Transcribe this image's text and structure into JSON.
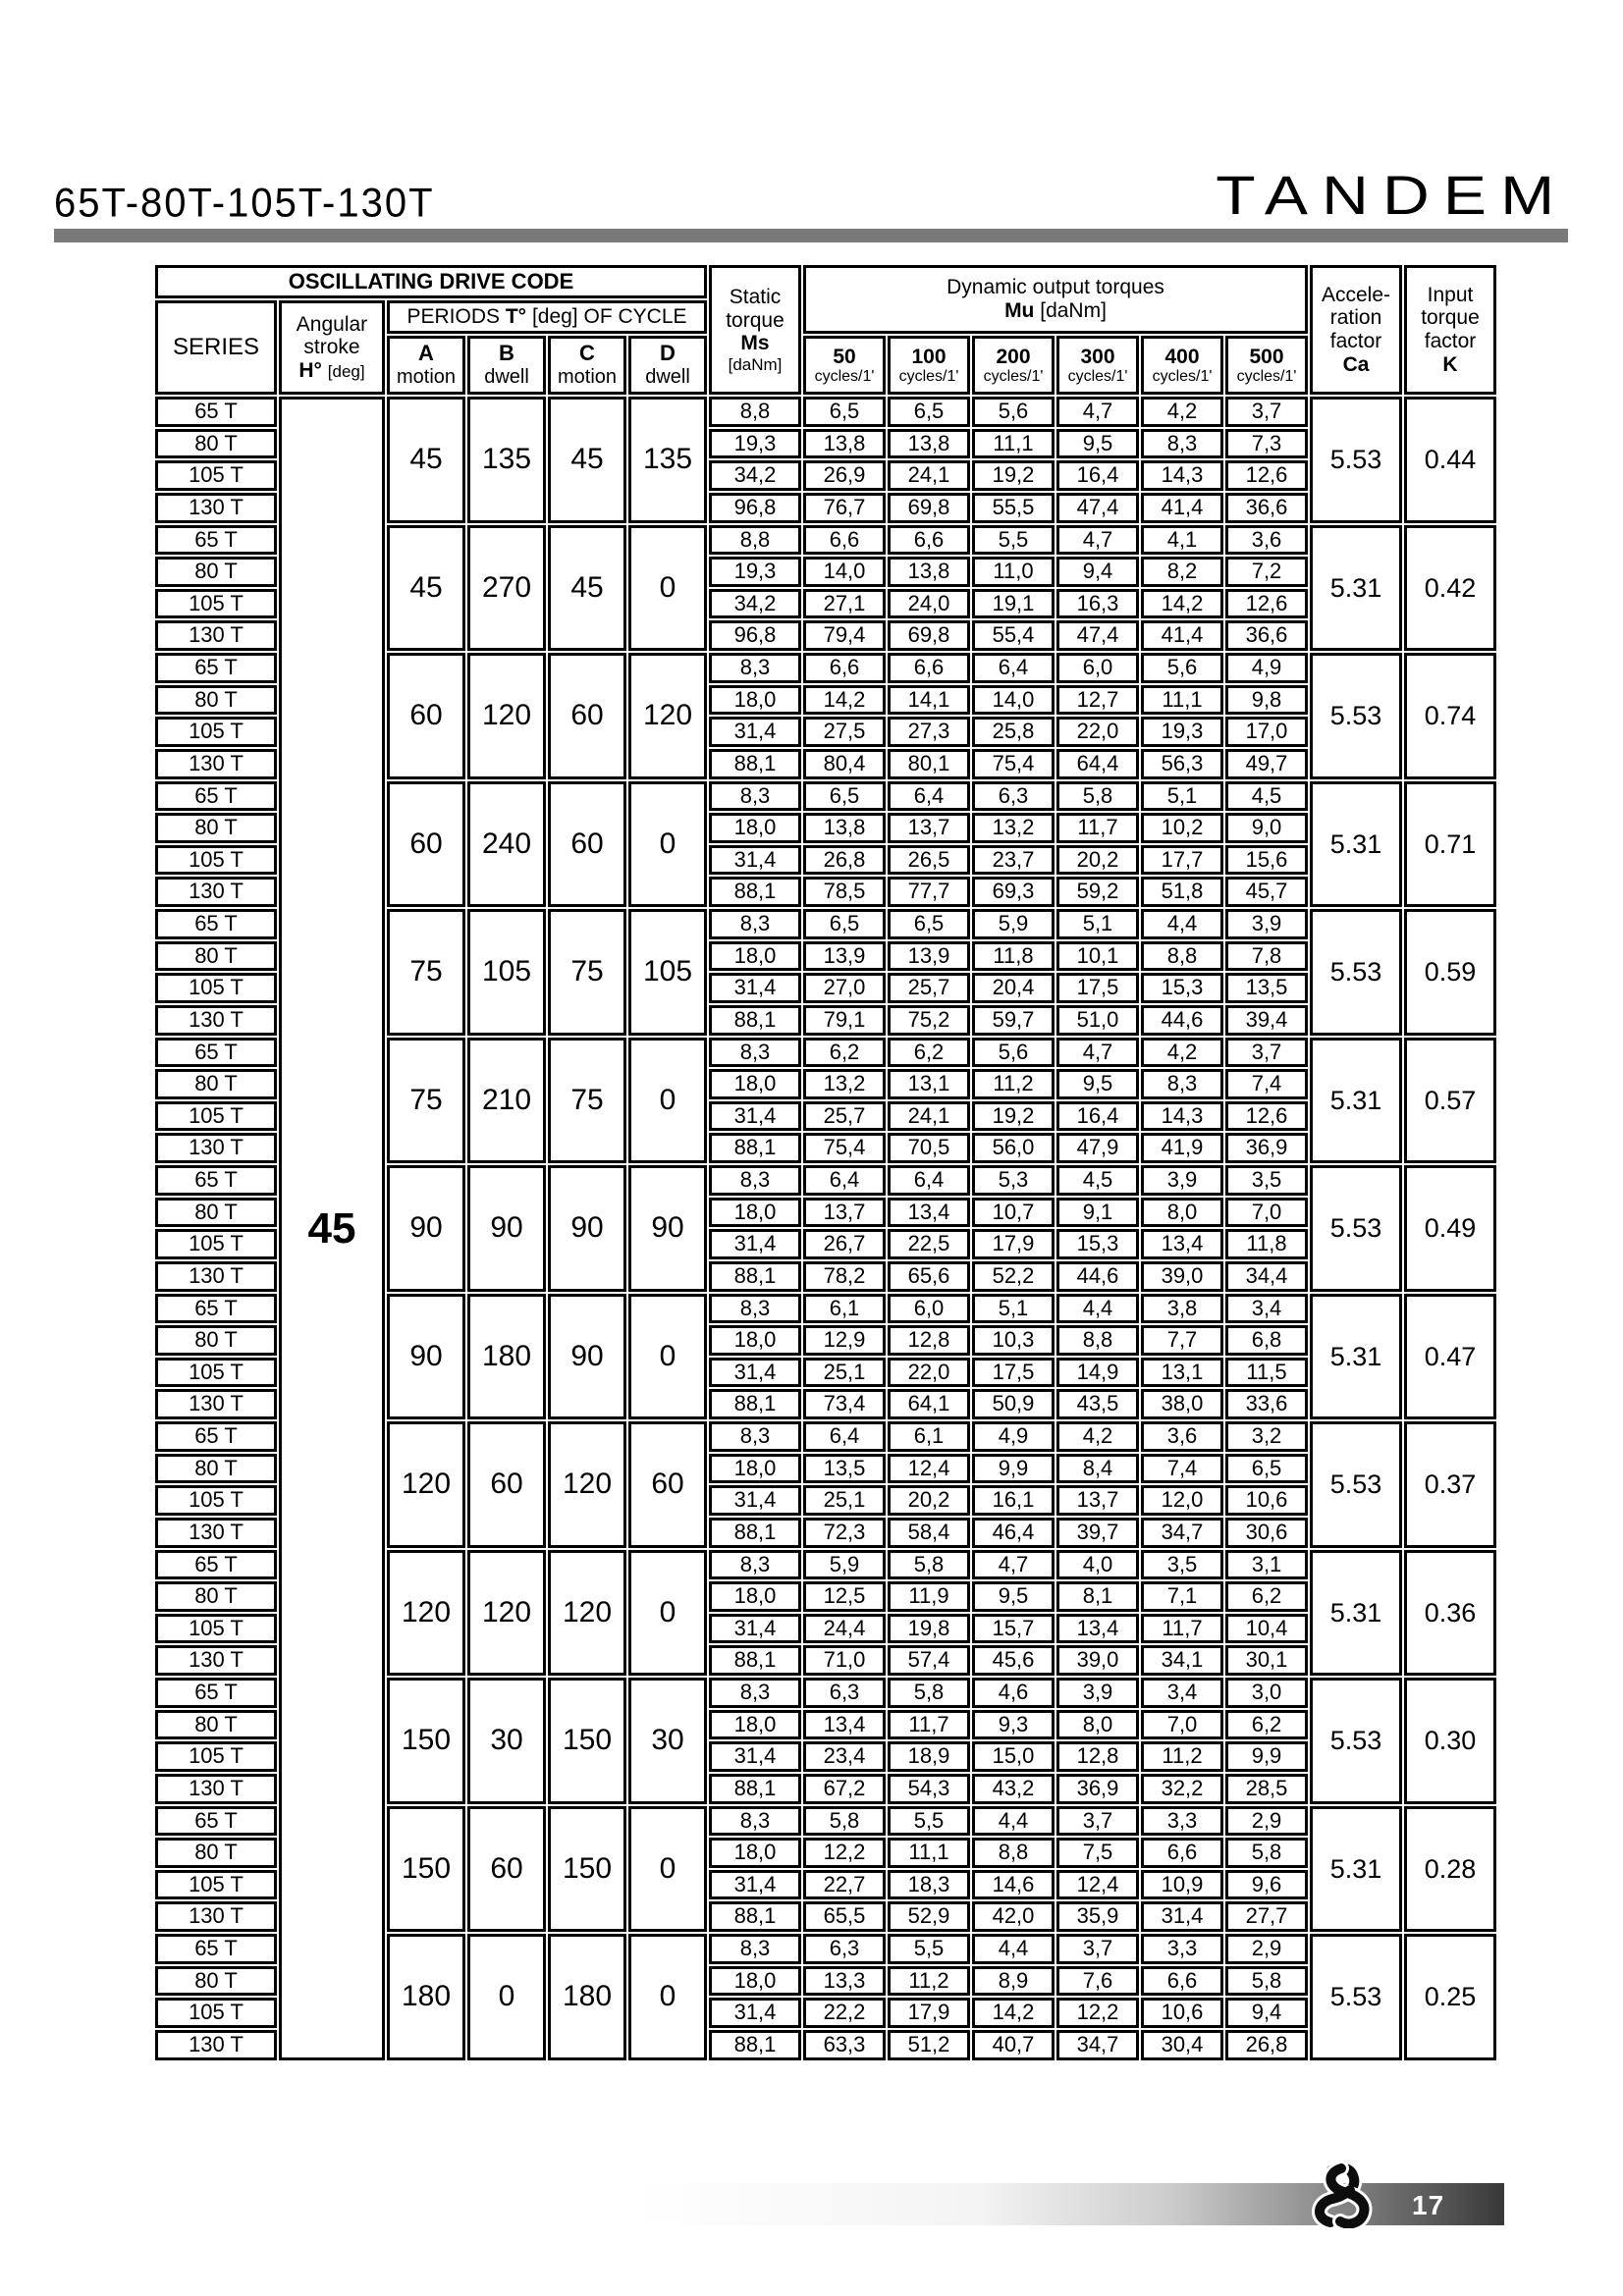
{
  "page": {
    "title_left": "65T-80T-105T-130T",
    "title_right": "TANDEM",
    "page_number": "17"
  },
  "table": {
    "header": {
      "drive_code": "OSCILLATING DRIVE CODE",
      "series": "SERIES",
      "angular_lines": [
        "Angular",
        "stroke"
      ],
      "angular_sym": "H°",
      "angular_unit": "[deg]",
      "periods_pre": "PERIODS",
      "periods_sym": "T°",
      "periods_post": "[deg] OF CYCLE",
      "period_cols": [
        {
          "letter": "A",
          "sub": "motion"
        },
        {
          "letter": "B",
          "sub": "dwell"
        },
        {
          "letter": "C",
          "sub": "motion"
        },
        {
          "letter": "D",
          "sub": "dwell"
        }
      ],
      "static_lines": [
        "Static",
        "torque"
      ],
      "static_sym": "Ms",
      "static_unit": "[daNm]",
      "dynamic_title": "Dynamic output torques",
      "dynamic_sym": "Mu",
      "dynamic_unit": "[daNm]",
      "cycle_values": [
        "50",
        "100",
        "200",
        "300",
        "400",
        "500"
      ],
      "cycles_label": "cycles/1'",
      "accel_lines": [
        "Accele-",
        "ration",
        "factor"
      ],
      "accel_sym": "Ca",
      "input_lines": [
        "Input",
        "torque",
        "factor"
      ],
      "input_sym": "K"
    },
    "angular_stroke_value": "45",
    "series_labels": [
      "65 T",
      "80 T",
      "105 T",
      "130 T"
    ],
    "groups": [
      {
        "A": "45",
        "B": "135",
        "C": "45",
        "D": "135",
        "Ca": "5.53",
        "K": "0.44",
        "rows": [
          [
            "8,8",
            "6,5",
            "6,5",
            "5,6",
            "4,7",
            "4,2",
            "3,7"
          ],
          [
            "19,3",
            "13,8",
            "13,8",
            "11,1",
            "9,5",
            "8,3",
            "7,3"
          ],
          [
            "34,2",
            "26,9",
            "24,1",
            "19,2",
            "16,4",
            "14,3",
            "12,6"
          ],
          [
            "96,8",
            "76,7",
            "69,8",
            "55,5",
            "47,4",
            "41,4",
            "36,6"
          ]
        ]
      },
      {
        "A": "45",
        "B": "270",
        "C": "45",
        "D": "0",
        "Ca": "5.31",
        "K": "0.42",
        "rows": [
          [
            "8,8",
            "6,6",
            "6,6",
            "5,5",
            "4,7",
            "4,1",
            "3,6"
          ],
          [
            "19,3",
            "14,0",
            "13,8",
            "11,0",
            "9,4",
            "8,2",
            "7,2"
          ],
          [
            "34,2",
            "27,1",
            "24,0",
            "19,1",
            "16,3",
            "14,2",
            "12,6"
          ],
          [
            "96,8",
            "79,4",
            "69,8",
            "55,4",
            "47,4",
            "41,4",
            "36,6"
          ]
        ]
      },
      {
        "A": "60",
        "B": "120",
        "C": "60",
        "D": "120",
        "Ca": "5.53",
        "K": "0.74",
        "rows": [
          [
            "8,3",
            "6,6",
            "6,6",
            "6,4",
            "6,0",
            "5,6",
            "4,9"
          ],
          [
            "18,0",
            "14,2",
            "14,1",
            "14,0",
            "12,7",
            "11,1",
            "9,8"
          ],
          [
            "31,4",
            "27,5",
            "27,3",
            "25,8",
            "22,0",
            "19,3",
            "17,0"
          ],
          [
            "88,1",
            "80,4",
            "80,1",
            "75,4",
            "64,4",
            "56,3",
            "49,7"
          ]
        ]
      },
      {
        "A": "60",
        "B": "240",
        "C": "60",
        "D": "0",
        "Ca": "5.31",
        "K": "0.71",
        "rows": [
          [
            "8,3",
            "6,5",
            "6,4",
            "6,3",
            "5,8",
            "5,1",
            "4,5"
          ],
          [
            "18,0",
            "13,8",
            "13,7",
            "13,2",
            "11,7",
            "10,2",
            "9,0"
          ],
          [
            "31,4",
            "26,8",
            "26,5",
            "23,7",
            "20,2",
            "17,7",
            "15,6"
          ],
          [
            "88,1",
            "78,5",
            "77,7",
            "69,3",
            "59,2",
            "51,8",
            "45,7"
          ]
        ]
      },
      {
        "A": "75",
        "B": "105",
        "C": "75",
        "D": "105",
        "Ca": "5.53",
        "K": "0.59",
        "rows": [
          [
            "8,3",
            "6,5",
            "6,5",
            "5,9",
            "5,1",
            "4,4",
            "3,9"
          ],
          [
            "18,0",
            "13,9",
            "13,9",
            "11,8",
            "10,1",
            "8,8",
            "7,8"
          ],
          [
            "31,4",
            "27,0",
            "25,7",
            "20,4",
            "17,5",
            "15,3",
            "13,5"
          ],
          [
            "88,1",
            "79,1",
            "75,2",
            "59,7",
            "51,0",
            "44,6",
            "39,4"
          ]
        ]
      },
      {
        "A": "75",
        "B": "210",
        "C": "75",
        "D": "0",
        "Ca": "5.31",
        "K": "0.57",
        "rows": [
          [
            "8,3",
            "6,2",
            "6,2",
            "5,6",
            "4,7",
            "4,2",
            "3,7"
          ],
          [
            "18,0",
            "13,2",
            "13,1",
            "11,2",
            "9,5",
            "8,3",
            "7,4"
          ],
          [
            "31,4",
            "25,7",
            "24,1",
            "19,2",
            "16,4",
            "14,3",
            "12,6"
          ],
          [
            "88,1",
            "75,4",
            "70,5",
            "56,0",
            "47,9",
            "41,9",
            "36,9"
          ]
        ]
      },
      {
        "A": "90",
        "B": "90",
        "C": "90",
        "D": "90",
        "Ca": "5.53",
        "K": "0.49",
        "rows": [
          [
            "8,3",
            "6,4",
            "6,4",
            "5,3",
            "4,5",
            "3,9",
            "3,5"
          ],
          [
            "18,0",
            "13,7",
            "13,4",
            "10,7",
            "9,1",
            "8,0",
            "7,0"
          ],
          [
            "31,4",
            "26,7",
            "22,5",
            "17,9",
            "15,3",
            "13,4",
            "11,8"
          ],
          [
            "88,1",
            "78,2",
            "65,6",
            "52,2",
            "44,6",
            "39,0",
            "34,4"
          ]
        ]
      },
      {
        "A": "90",
        "B": "180",
        "C": "90",
        "D": "0",
        "Ca": "5.31",
        "K": "0.47",
        "rows": [
          [
            "8,3",
            "6,1",
            "6,0",
            "5,1",
            "4,4",
            "3,8",
            "3,4"
          ],
          [
            "18,0",
            "12,9",
            "12,8",
            "10,3",
            "8,8",
            "7,7",
            "6,8"
          ],
          [
            "31,4",
            "25,1",
            "22,0",
            "17,5",
            "14,9",
            "13,1",
            "11,5"
          ],
          [
            "88,1",
            "73,4",
            "64,1",
            "50,9",
            "43,5",
            "38,0",
            "33,6"
          ]
        ]
      },
      {
        "A": "120",
        "B": "60",
        "C": "120",
        "D": "60",
        "Ca": "5.53",
        "K": "0.37",
        "rows": [
          [
            "8,3",
            "6,4",
            "6,1",
            "4,9",
            "4,2",
            "3,6",
            "3,2"
          ],
          [
            "18,0",
            "13,5",
            "12,4",
            "9,9",
            "8,4",
            "7,4",
            "6,5"
          ],
          [
            "31,4",
            "25,1",
            "20,2",
            "16,1",
            "13,7",
            "12,0",
            "10,6"
          ],
          [
            "88,1",
            "72,3",
            "58,4",
            "46,4",
            "39,7",
            "34,7",
            "30,6"
          ]
        ]
      },
      {
        "A": "120",
        "B": "120",
        "C": "120",
        "D": "0",
        "Ca": "5.31",
        "K": "0.36",
        "rows": [
          [
            "8,3",
            "5,9",
            "5,8",
            "4,7",
            "4,0",
            "3,5",
            "3,1"
          ],
          [
            "18,0",
            "12,5",
            "11,9",
            "9,5",
            "8,1",
            "7,1",
            "6,2"
          ],
          [
            "31,4",
            "24,4",
            "19,8",
            "15,7",
            "13,4",
            "11,7",
            "10,4"
          ],
          [
            "88,1",
            "71,0",
            "57,4",
            "45,6",
            "39,0",
            "34,1",
            "30,1"
          ]
        ]
      },
      {
        "A": "150",
        "B": "30",
        "C": "150",
        "D": "30",
        "Ca": "5.53",
        "K": "0.30",
        "rows": [
          [
            "8,3",
            "6,3",
            "5,8",
            "4,6",
            "3,9",
            "3,4",
            "3,0"
          ],
          [
            "18,0",
            "13,4",
            "11,7",
            "9,3",
            "8,0",
            "7,0",
            "6,2"
          ],
          [
            "31,4",
            "23,4",
            "18,9",
            "15,0",
            "12,8",
            "11,2",
            "9,9"
          ],
          [
            "88,1",
            "67,2",
            "54,3",
            "43,2",
            "36,9",
            "32,2",
            "28,5"
          ]
        ]
      },
      {
        "A": "150",
        "B": "60",
        "C": "150",
        "D": "0",
        "Ca": "5.31",
        "K": "0.28",
        "rows": [
          [
            "8,3",
            "5,8",
            "5,5",
            "4,4",
            "3,7",
            "3,3",
            "2,9"
          ],
          [
            "18,0",
            "12,2",
            "11,1",
            "8,8",
            "7,5",
            "6,6",
            "5,8"
          ],
          [
            "31,4",
            "22,7",
            "18,3",
            "14,6",
            "12,4",
            "10,9",
            "9,6"
          ],
          [
            "88,1",
            "65,5",
            "52,9",
            "42,0",
            "35,9",
            "31,4",
            "27,7"
          ]
        ]
      },
      {
        "A": "180",
        "B": "0",
        "C": "180",
        "D": "0",
        "Ca": "5.53",
        "K": "0.25",
        "rows": [
          [
            "8,3",
            "6,3",
            "5,5",
            "4,4",
            "3,7",
            "3,3",
            "2,9"
          ],
          [
            "18,0",
            "13,3",
            "11,2",
            "8,9",
            "7,6",
            "6,6",
            "5,8"
          ],
          [
            "31,4",
            "22,2",
            "17,9",
            "14,2",
            "12,2",
            "10,6",
            "9,4"
          ],
          [
            "88,1",
            "63,3",
            "51,2",
            "40,7",
            "34,7",
            "30,4",
            "26,8"
          ]
        ]
      }
    ]
  }
}
